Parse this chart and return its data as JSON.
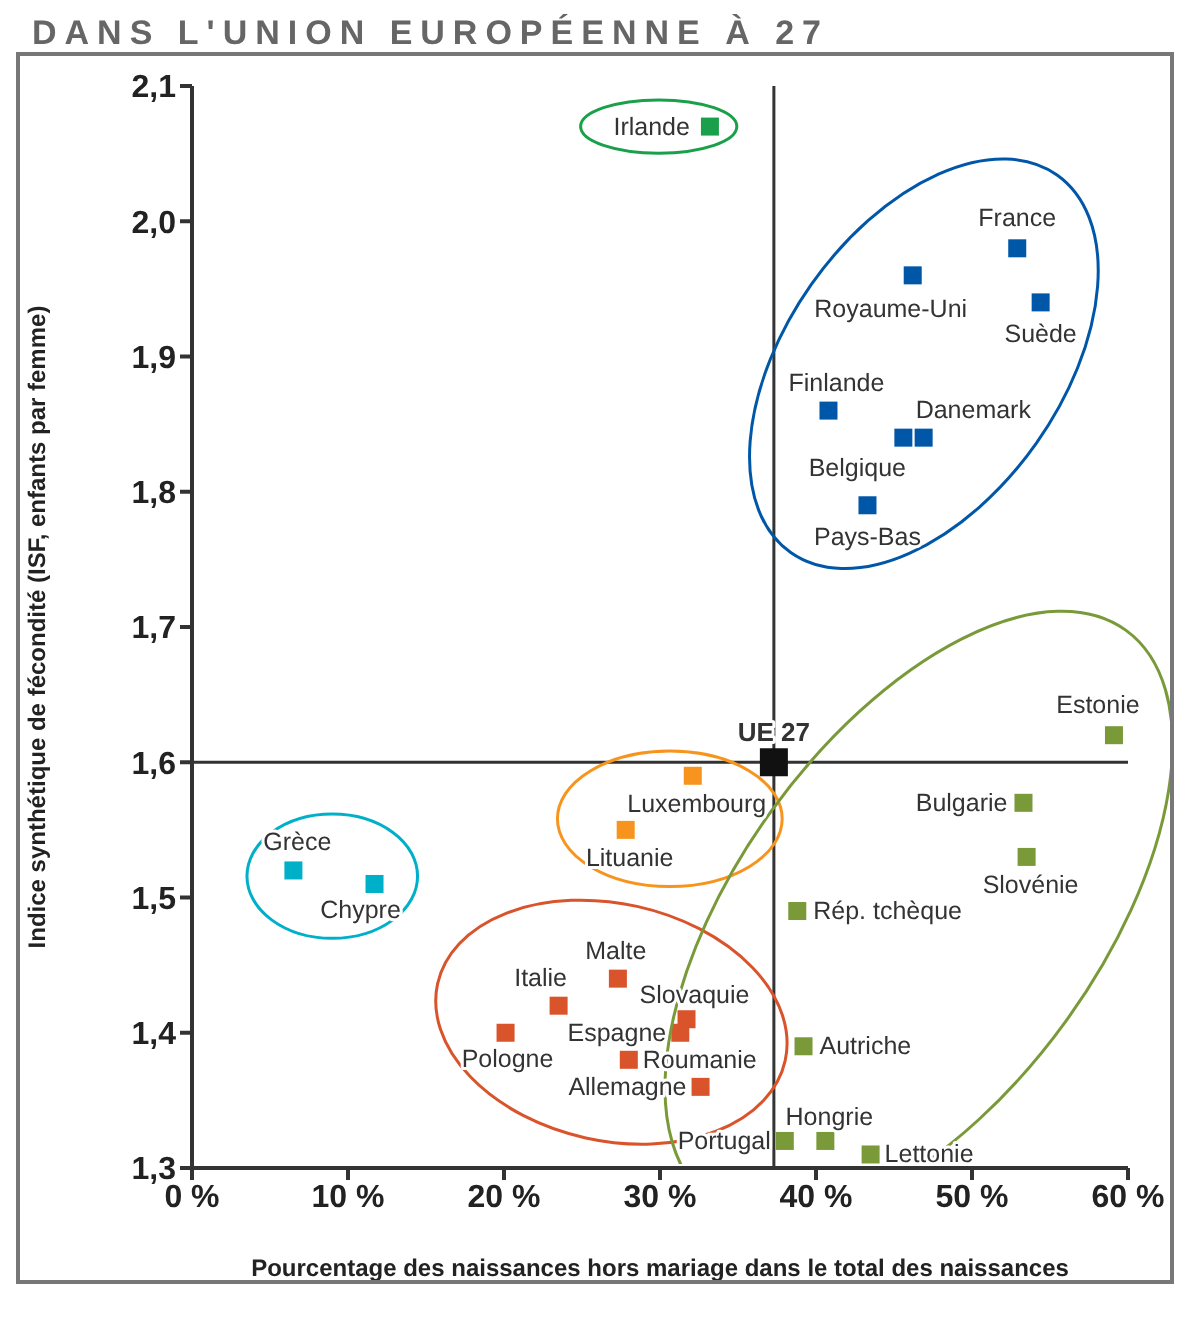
{
  "chart_data": {
    "type": "scatter",
    "title": "DANS L'UNION EUROPÉENNE À 27",
    "xlabel": "Pourcentage des naissances hors mariage dans le total des naissances",
    "ylabel": "Indice synthétique de fécondité (ISF, enfants par femme)",
    "marker": "square",
    "legend": false,
    "grid": false,
    "xlim": [
      0,
      60
    ],
    "xticks": [
      {
        "value": 0,
        "label": "0 %"
      },
      {
        "value": 10,
        "label": "10 %"
      },
      {
        "value": 20,
        "label": "20 %"
      },
      {
        "value": 30,
        "label": "30 %"
      },
      {
        "value": 40,
        "label": "40 %"
      },
      {
        "value": 50,
        "label": "50 %"
      },
      {
        "value": 60,
        "label": "60 %"
      }
    ],
    "ylim": [
      1.3,
      2.1
    ],
    "yticks": [
      {
        "value": 1.3,
        "label": "1,3"
      },
      {
        "value": 1.4,
        "label": "1,4"
      },
      {
        "value": 1.5,
        "label": "1,5"
      },
      {
        "value": 1.6,
        "label": "1,6"
      },
      {
        "value": 1.7,
        "label": "1,7"
      },
      {
        "value": 1.8,
        "label": "1,8"
      },
      {
        "value": 1.9,
        "label": "1,9"
      },
      {
        "value": 2.0,
        "label": "2,0"
      },
      {
        "value": 2.1,
        "label": "2,1"
      }
    ],
    "ref_lines": [
      {
        "axis": "x",
        "value": 37.3,
        "color": "#333333"
      },
      {
        "axis": "y",
        "value": 1.6,
        "color": "#333333"
      }
    ],
    "series": [
      {
        "color": "#1aa04a",
        "x": [
          33.2
        ],
        "values": [
          2.07
        ]
      },
      {
        "color": "#0057a8",
        "x": [
          52.9,
          46.2,
          54.4,
          40.8,
          46.9,
          45.6,
          43.3
        ],
        "values": [
          1.98,
          1.96,
          1.94,
          1.86,
          1.84,
          1.84,
          1.79
        ]
      },
      {
        "color": "#111111",
        "x": [
          37.3
        ],
        "values": [
          1.6
        ]
      },
      {
        "color": "#f7941d",
        "x": [
          32.1,
          27.8
        ],
        "values": [
          1.59,
          1.55
        ]
      },
      {
        "color": "#00b0c8",
        "x": [
          6.5,
          11.7
        ],
        "values": [
          1.52,
          1.51
        ]
      },
      {
        "color": "#d9532b",
        "x": [
          27.3,
          23.5,
          31.7,
          20.1,
          31.3,
          28.0,
          32.6
        ],
        "values": [
          1.44,
          1.42,
          1.41,
          1.4,
          1.4,
          1.38,
          1.36
        ]
      },
      {
        "color": "#7a9a3a",
        "x": [
          59.1,
          53.3,
          53.5,
          38.8,
          39.2,
          40.6,
          38.0,
          43.5
        ],
        "values": [
          1.62,
          1.57,
          1.53,
          1.49,
          1.39,
          1.32,
          1.32,
          1.31
        ]
      }
    ],
    "annotations": [
      {
        "text": "Irlande",
        "x": 33.2,
        "y": 2.07
      },
      {
        "text": "France",
        "x": 52.9,
        "y": 1.98
      },
      {
        "text": "Royaume-Uni",
        "x": 46.2,
        "y": 1.96
      },
      {
        "text": "Suède",
        "x": 54.4,
        "y": 1.94
      },
      {
        "text": "Finlande",
        "x": 40.8,
        "y": 1.86
      },
      {
        "text": "Danemark",
        "x": 46.9,
        "y": 1.84
      },
      {
        "text": "Belgique",
        "x": 45.6,
        "y": 1.84
      },
      {
        "text": "Pays-Bas",
        "x": 43.3,
        "y": 1.79
      },
      {
        "text": "UE 27",
        "x": 37.3,
        "y": 1.6
      },
      {
        "text": "Luxembourg",
        "x": 32.1,
        "y": 1.59
      },
      {
        "text": "Lituanie",
        "x": 27.8,
        "y": 1.55
      },
      {
        "text": "Grèce",
        "x": 6.5,
        "y": 1.52
      },
      {
        "text": "Chypre",
        "x": 11.7,
        "y": 1.51
      },
      {
        "text": "Malte",
        "x": 27.3,
        "y": 1.44
      },
      {
        "text": "Italie",
        "x": 23.5,
        "y": 1.42
      },
      {
        "text": "Slovaquie",
        "x": 31.7,
        "y": 1.41
      },
      {
        "text": "Pologne",
        "x": 20.1,
        "y": 1.4
      },
      {
        "text": "Espagne",
        "x": 31.3,
        "y": 1.4
      },
      {
        "text": "Roumanie",
        "x": 28.0,
        "y": 1.38
      },
      {
        "text": "Allemagne",
        "x": 32.6,
        "y": 1.36
      },
      {
        "text": "Estonie",
        "x": 59.1,
        "y": 1.62
      },
      {
        "text": "Bulgarie",
        "x": 53.3,
        "y": 1.57
      },
      {
        "text": "Slovénie",
        "x": 53.5,
        "y": 1.53
      },
      {
        "text": "Rép. tchèque",
        "x": 38.8,
        "y": 1.49
      },
      {
        "text": "Autriche",
        "x": 39.2,
        "y": 1.39
      },
      {
        "text": "Hongrie",
        "x": 40.6,
        "y": 1.32
      },
      {
        "text": "Portugal",
        "x": 38.0,
        "y": 1.32
      },
      {
        "text": "Lettonie",
        "x": 43.5,
        "y": 1.31
      }
    ]
  }
}
